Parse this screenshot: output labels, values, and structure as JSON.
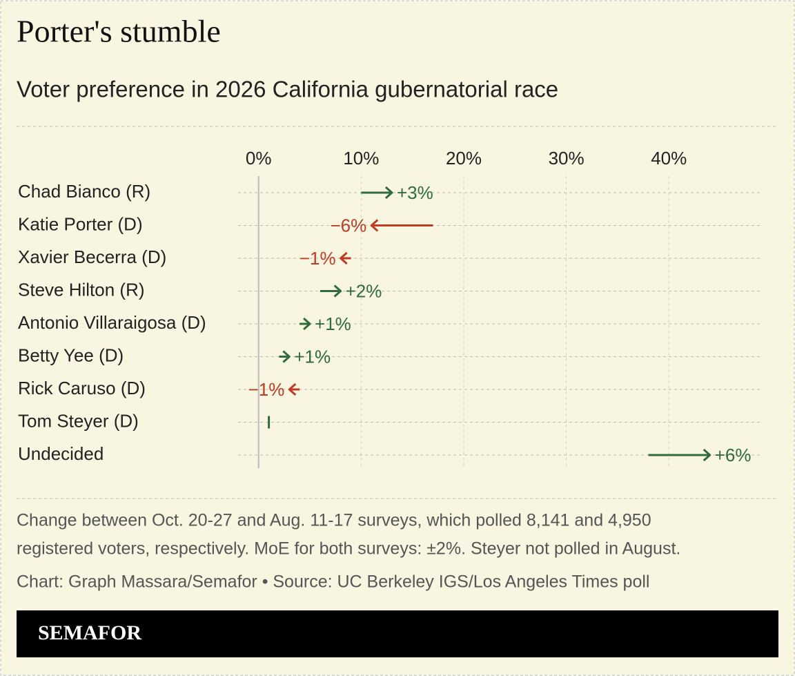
{
  "chart_data": {
    "type": "arrow",
    "title": "Porter's stumble",
    "subtitle": "Voter preference in 2026 California gubernatorial race",
    "categories": [
      "Chad Bianco (R)",
      "Katie Porter (D)",
      "Xavier Becerra (D)",
      "Steve Hilton (R)",
      "Antonio Villaraigosa (D)",
      "Betty Yee (D)",
      "Rick Caruso (D)",
      "Tom Steyer (D)",
      "Undecided"
    ],
    "from": [
      10,
      17,
      9,
      6,
      4,
      2,
      4,
      null,
      38
    ],
    "to": [
      13,
      11,
      8,
      8,
      5,
      3,
      3,
      1,
      44
    ],
    "change": [
      3,
      -6,
      -1,
      2,
      1,
      1,
      -1,
      null,
      6
    ],
    "change_labels": [
      "+3%",
      "−6%",
      "−1%",
      "+2%",
      "+1%",
      "+1%",
      "−1%",
      null,
      "+6%"
    ],
    "up_color": "#2f6b3b",
    "down_color": "#c13a23",
    "xlim": [
      -2,
      49
    ],
    "xticks": [
      {
        "value": 0,
        "label": "0%"
      },
      {
        "value": 10,
        "label": "10%"
      },
      {
        "value": 20,
        "label": "20%"
      },
      {
        "value": 30,
        "label": "30%"
      },
      {
        "value": 40,
        "label": "40%"
      }
    ],
    "grid": true,
    "note": [
      "Change between Oct. 20-27 and Aug. 11-17 surveys, which polled 8,141 and 4,950",
      "registered voters, respectively. MoE for both surveys: ±2%. Steyer not polled in August."
    ],
    "source": "Chart: Graph Massara/Semafor • Source: UC Berkeley IGS/Los Angeles Times poll",
    "brand": "SEMAFOR"
  }
}
